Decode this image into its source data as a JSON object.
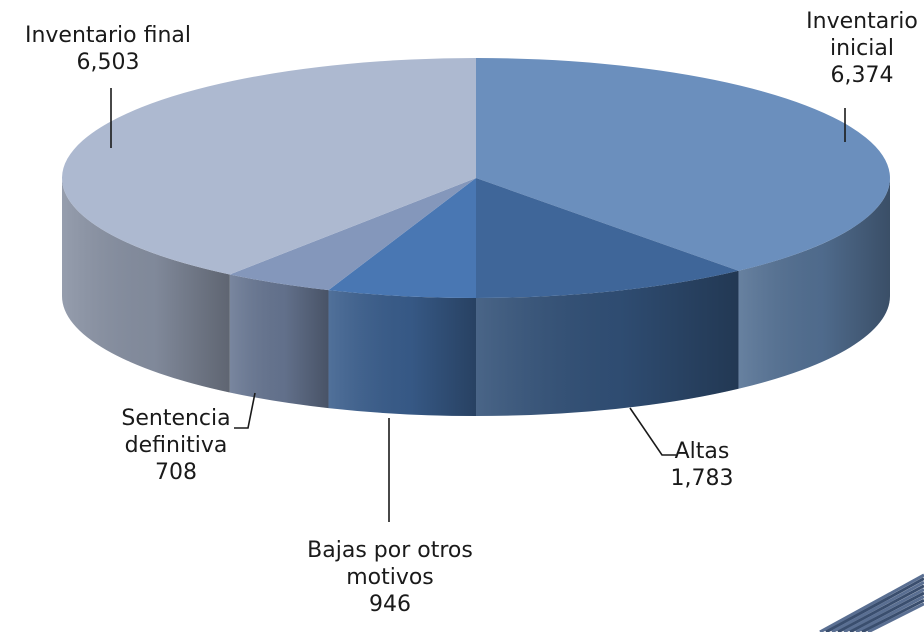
{
  "chart_data": {
    "type": "pie",
    "style": "3d",
    "title": "",
    "legend": "none",
    "slices": [
      {
        "name": "Inventario inicial",
        "name_lines": [
          "Inventario",
          "inicial"
        ],
        "value": 6374,
        "value_label": "6,374",
        "color": "#6b8fbd"
      },
      {
        "name": "Altas",
        "name_lines": [
          "Altas"
        ],
        "value": 1783,
        "value_label": "1,783",
        "color": "#3f6699"
      },
      {
        "name": "Bajas por otros motivos",
        "name_lines": [
          "Bajas por otros",
          "motivos"
        ],
        "value": 946,
        "value_label": "946",
        "color": "#4977b3"
      },
      {
        "name": "Sentencia definitiva",
        "name_lines": [
          "Sentencia",
          "definitiva"
        ],
        "value": 708,
        "value_label": "708",
        "color": "#8497bb"
      },
      {
        "name": "Inventario final",
        "name_lines": [
          "Inventario final"
        ],
        "value": 6503,
        "value_label": "6,503",
        "color": "#adb9d0"
      }
    ]
  }
}
